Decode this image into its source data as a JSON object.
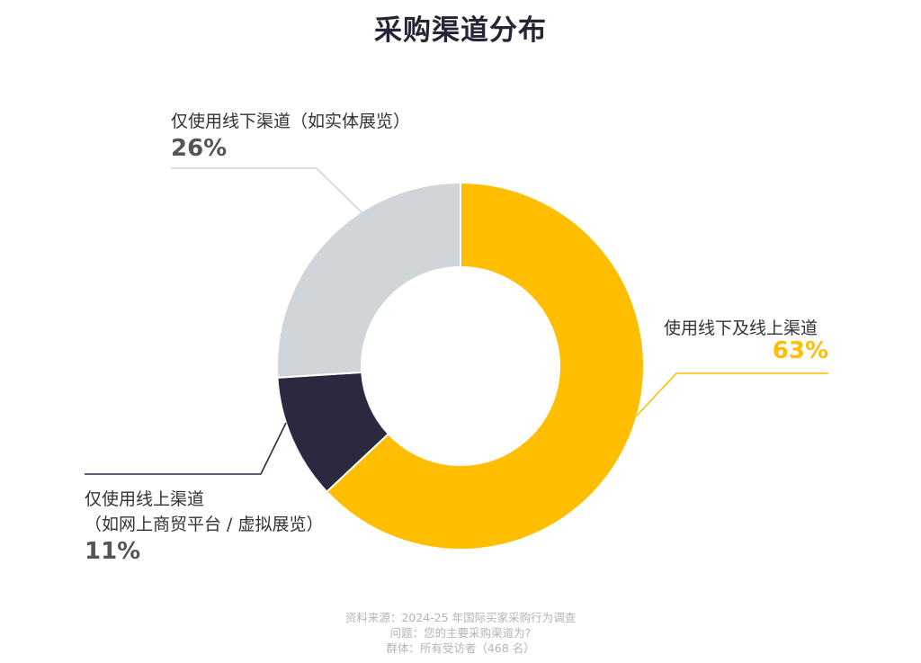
{
  "chart_data": {
    "type": "pie",
    "title": "采购渠道分布",
    "categories": [
      "使用线下及线上渠道",
      "仅使用线上渠道（如网上商贸平台 / 虚拟展览）",
      "仅使用线下渠道（如实体展览）"
    ],
    "values": [
      63,
      11,
      26
    ],
    "unit": "%",
    "colors": [
      "#FFBF00",
      "#2B2940",
      "#CFD5D9"
    ],
    "labels": [
      {
        "lines": [
          "使用线下及线上渠道"
        ],
        "value": "63%",
        "value_color": "#FFBF00"
      },
      {
        "lines": [
          "仅使用线上渠道",
          "（如网上商贸平台 / 虚拟展览）"
        ],
        "value": "11%",
        "value_color": "#555555"
      },
      {
        "lines": [
          "仅使用线下渠道（如实体展览）"
        ],
        "value": "26%",
        "value_color": "#555555"
      }
    ],
    "leader_line_colors": [
      "#FFBF00",
      "#2B2940",
      "#CFD5D9"
    ]
  },
  "footer": {
    "source": "资料来源：2024-25 年国际买家采购行为调查",
    "question": "问题：您的主要采购渠道为?",
    "base": "群体：所有受访者（468 名）"
  }
}
